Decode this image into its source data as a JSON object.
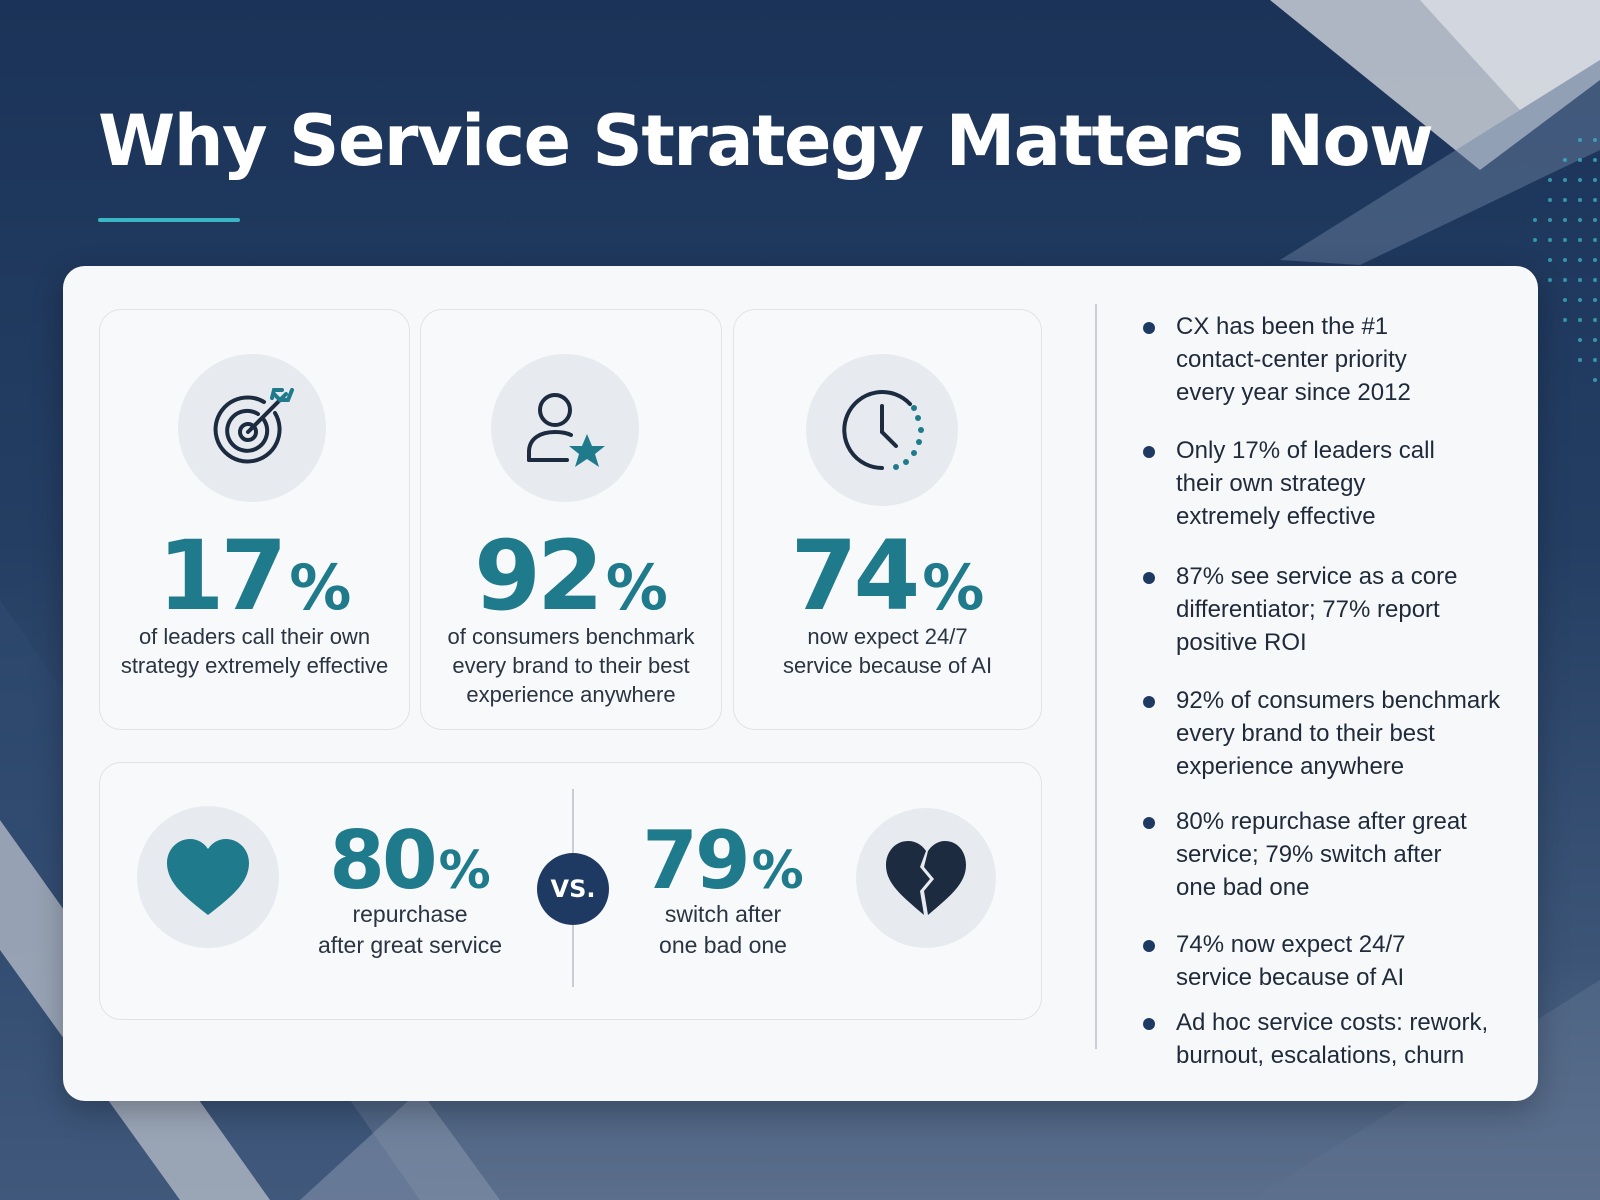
{
  "title": "Why Service Strategy Matters Now",
  "colors": {
    "navy": "#1b3358",
    "teal": "#1f7a8b",
    "accent": "#3bb6c4",
    "card": "#f7f8f9"
  },
  "stats": [
    {
      "icon": "target-icon",
      "value": "17",
      "unit": "%",
      "caption": [
        "of leaders call their own",
        "strategy extremely effective"
      ]
    },
    {
      "icon": "user-star-icon",
      "value": "92",
      "unit": "%",
      "caption": [
        "of consumers benchmark",
        "every brand to their best",
        "experience anywhere"
      ]
    },
    {
      "icon": "clock-icon",
      "value": "74",
      "unit": "%",
      "caption": [
        "now expect 24/7",
        "service because of AI"
      ]
    }
  ],
  "comparison": {
    "left": {
      "icon": "heart-icon",
      "value": "80",
      "unit": "%",
      "caption": [
        "repurchase",
        "after great service"
      ]
    },
    "vs_label": "VS.",
    "right": {
      "icon": "broken-heart-icon",
      "value": "79",
      "unit": "%",
      "caption": [
        "switch after",
        "one bad one"
      ]
    }
  },
  "bullets": [
    [
      "CX  has been the #1",
      "contact-center priority",
      "every year since 2012"
    ],
    [
      "Only 17% of leaders call",
      "their own strategy",
      "extremely effective"
    ],
    [
      "87% see service as a core",
      "differentiator; 77% report",
      "positive ROI"
    ],
    [
      "92% of consumers benchmark",
      "every brand to their best",
      "experience anywhere"
    ],
    [
      "80% repurchase after great",
      "service; 79% switch after",
      "one bad one"
    ],
    [
      "74% now expect 24/7",
      "service because of AI"
    ],
    [
      "Ad hoc service costs: rework,",
      "burnout, escalations, churn"
    ]
  ]
}
